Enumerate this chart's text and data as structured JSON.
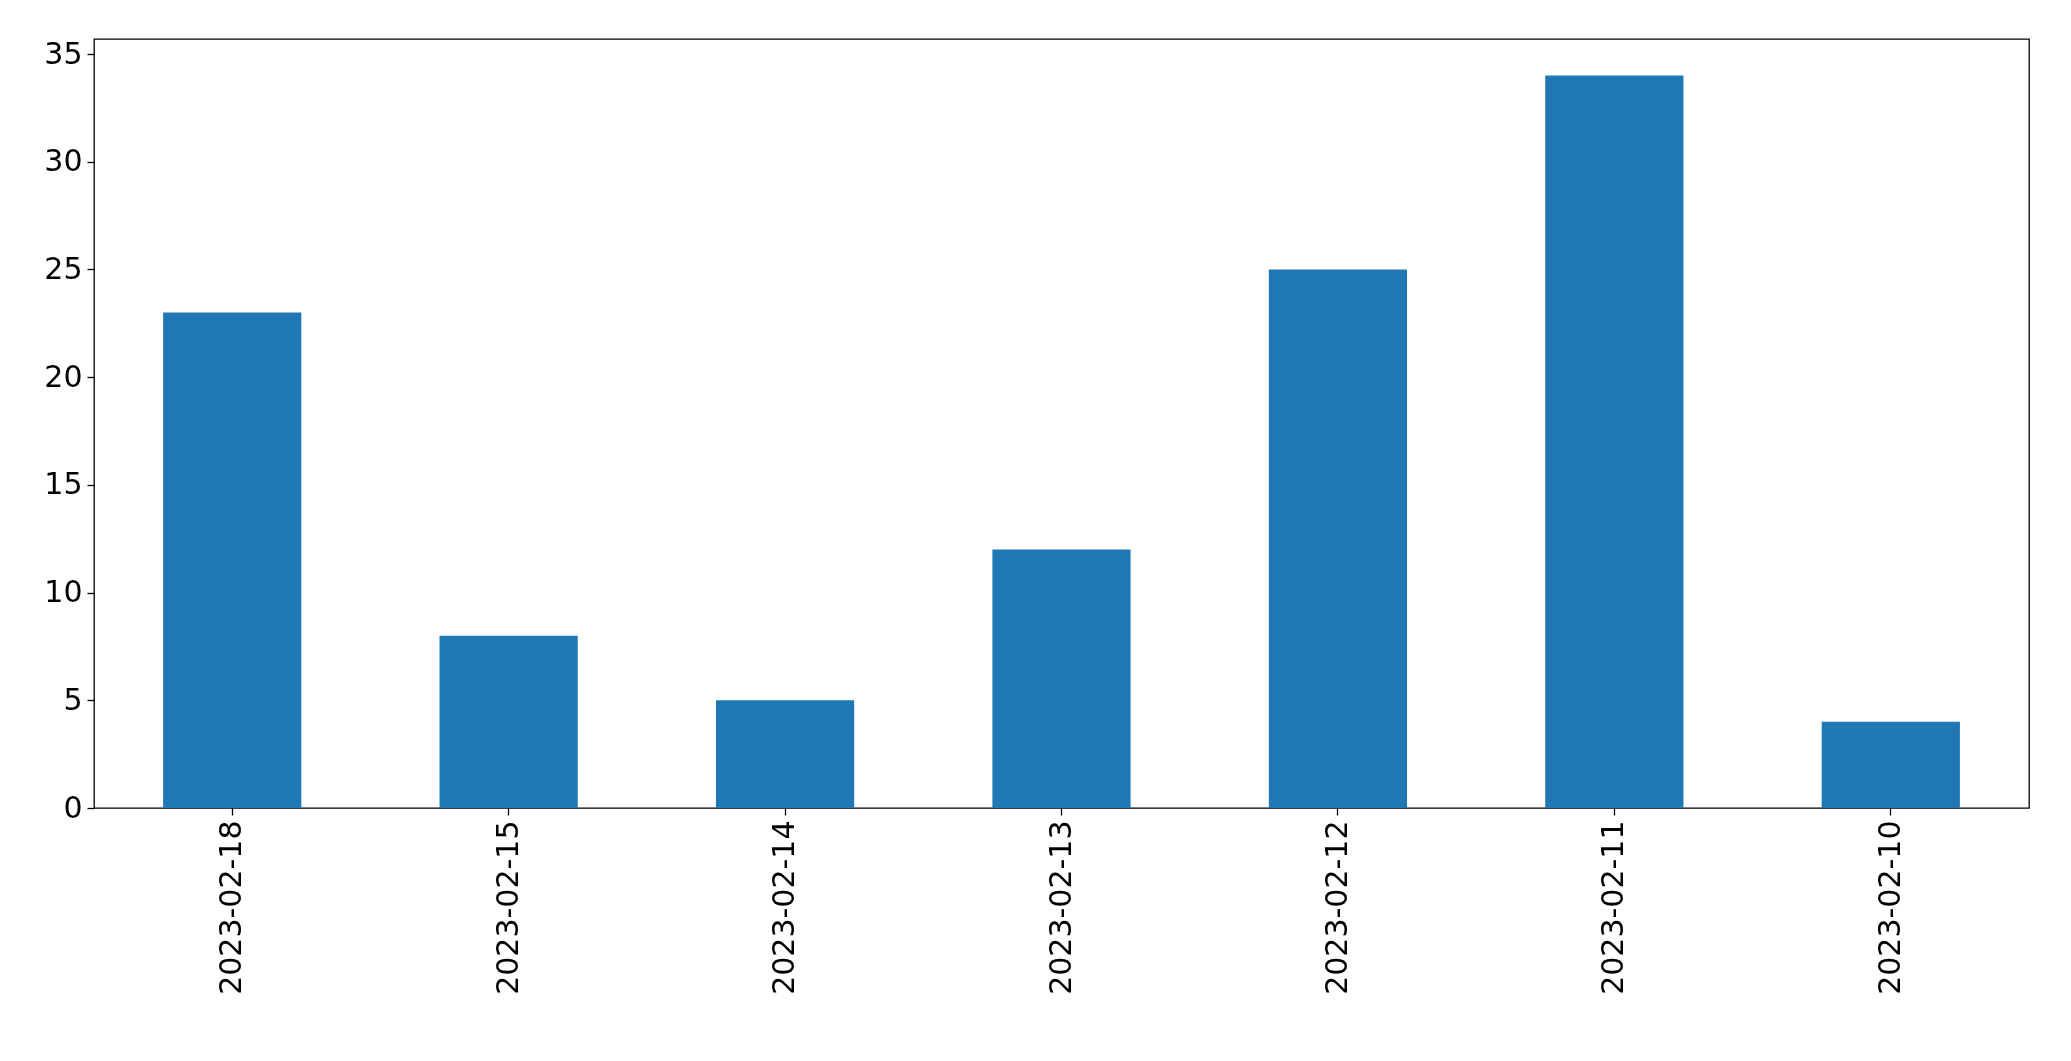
{
  "chart_data": {
    "type": "bar",
    "categories": [
      "2023-02-18",
      "2023-02-15",
      "2023-02-14",
      "2023-02-13",
      "2023-02-12",
      "2023-02-11",
      "2023-02-10"
    ],
    "values": [
      23,
      8,
      5,
      12,
      25,
      34,
      4
    ],
    "color": "#1f77b4",
    "ylim": [
      0,
      35.7
    ],
    "yticks": [
      0,
      5,
      10,
      15,
      20,
      25,
      30,
      35
    ],
    "grid": false
  }
}
